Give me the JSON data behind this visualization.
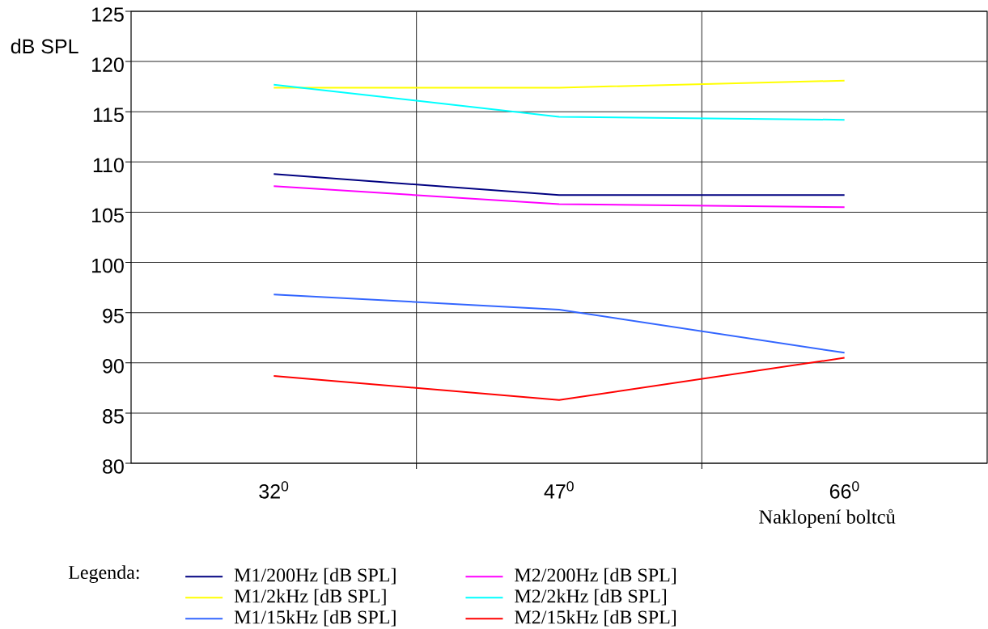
{
  "chart_data": {
    "type": "line",
    "categories": [
      "32$^{0}$",
      "47$^{0}$",
      "66$^{0}$"
    ],
    "xlabel": "Naklopení boltců",
    "ylabel": "dB SPL",
    "legend_title": "Legenda:",
    "ylim": [
      80,
      125
    ],
    "yticks": [
      80,
      85,
      90,
      95,
      100,
      105,
      110,
      115,
      120,
      125
    ],
    "grid": true,
    "legend": "bottom",
    "series": [
      {
        "name": "M1/200Hz [dB SPL]",
        "color": "#000080",
        "values": [
          108.8,
          106.7,
          106.7
        ]
      },
      {
        "name": "M1/2kHz [dB SPL]",
        "color": "#ffff00",
        "values": [
          117.4,
          117.4,
          118.1
        ]
      },
      {
        "name": "M1/15kHz [dB SPL]",
        "color": "#3366ff",
        "values": [
          96.8,
          95.3,
          91.0
        ]
      },
      {
        "name": "M2/200Hz [dB SPL]",
        "color": "#ff00ff",
        "values": [
          107.6,
          105.8,
          105.5
        ]
      },
      {
        "name": "M2/2kHz [dB SPL]",
        "color": "#00ffff",
        "values": [
          117.7,
          114.5,
          114.2
        ]
      },
      {
        "name": "M2/15kHz [dB SPL]",
        "color": "#ff0000",
        "values": [
          88.7,
          86.3,
          90.5
        ]
      }
    ]
  }
}
